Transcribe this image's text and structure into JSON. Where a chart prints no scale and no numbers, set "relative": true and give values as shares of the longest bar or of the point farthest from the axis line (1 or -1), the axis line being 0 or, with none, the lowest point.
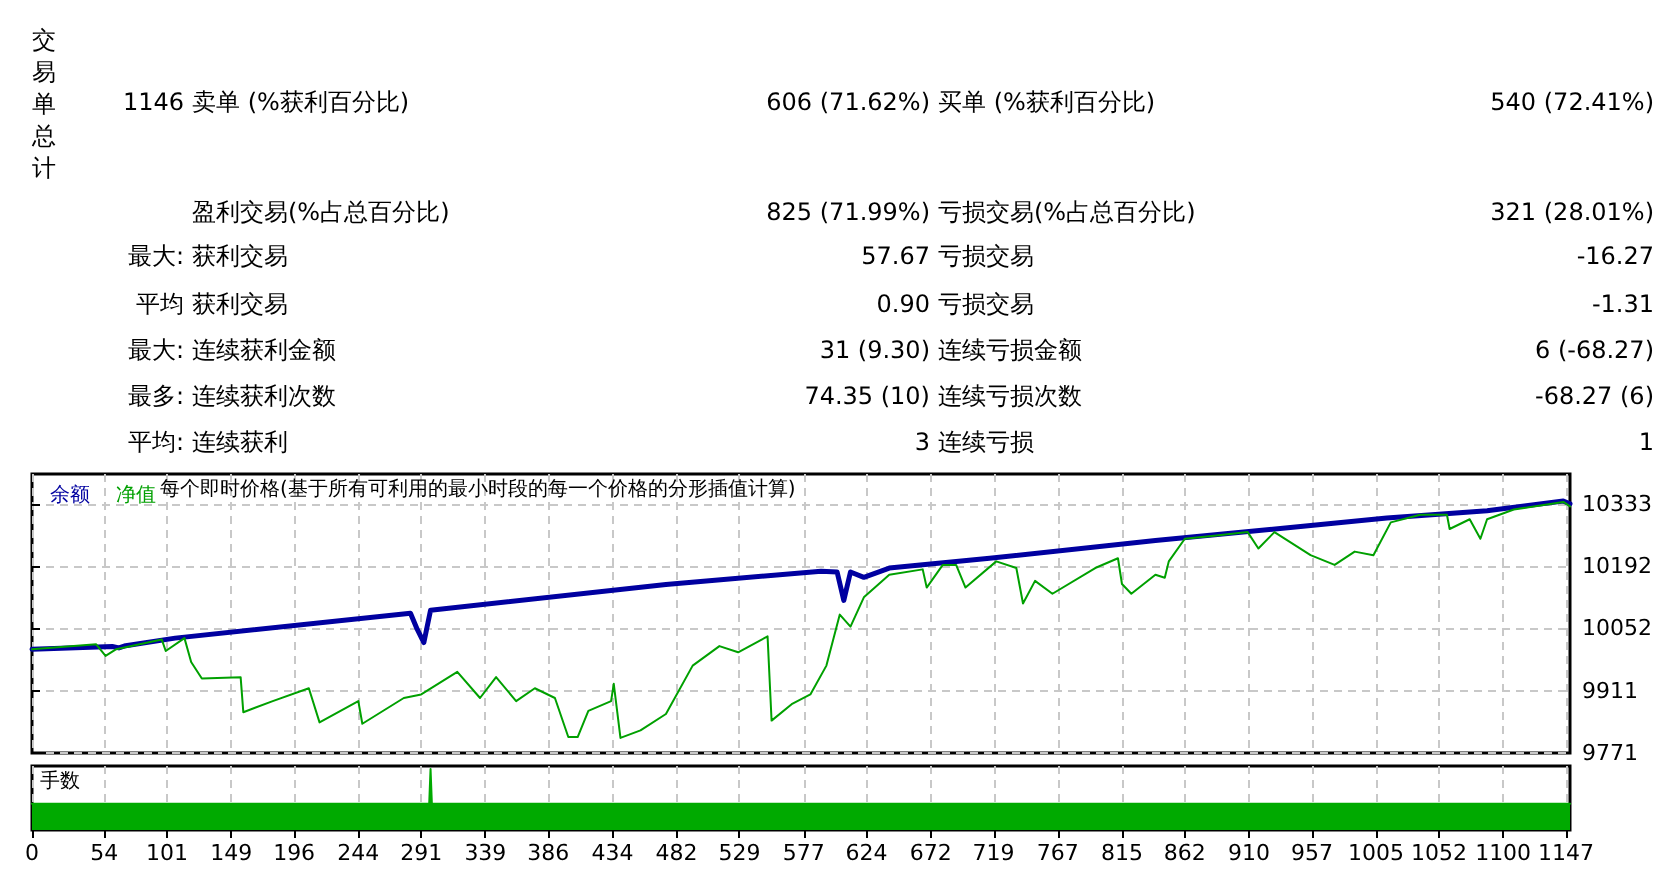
{
  "chart_data": [
    {
      "type": "other",
      "annotations": [
        "交易单总计",
        "1146",
        "卖单 (%获利百分比)",
        "606 (71.62%)",
        "买单 (%获利百分比)",
        "540 (72.41%)",
        "盈利交易(%占总百分比)",
        "825 (71.99%)",
        "亏损交易(%占总百分比)",
        "321 (28.01%)",
        "最大:",
        "获利交易",
        "57.67",
        "亏损交易",
        "-16.27",
        "平均",
        "获利交易",
        "0.90",
        "亏损交易",
        "-1.31",
        "最大:",
        "连续获利金额",
        "31 (9.30)",
        "连续亏损金额",
        "6 (-68.27)",
        "最多:",
        "连续获利次数",
        "74.35 (10)",
        "连续亏损次数",
        "-68.27 (6)",
        "平均:",
        "连续获利",
        "3",
        "连续亏损",
        "1"
      ]
    },
    {
      "type": "line",
      "title": "每个即时价格(基于所有可利用的最小时段的每一个价格的分形插值计算)",
      "legend": "top left",
      "grid": true,
      "tick_labels": "y",
      "xlim": [
        0,
        1150
      ],
      "xticks": [
        0,
        54,
        101,
        149,
        196,
        244,
        291,
        339,
        386,
        434,
        482,
        529,
        577,
        624,
        672,
        719,
        767,
        815,
        862,
        910,
        957,
        1005,
        1052,
        1100,
        1147
      ],
      "ylim": [
        9771,
        10400
      ],
      "yticks": [
        9771,
        9911,
        10052,
        10192,
        10333
      ],
      "series": [
        {
          "name": "余额",
          "color": "#0000a0",
          "x": [
            0,
            60,
            65,
            70,
            107,
            283,
            288,
            293,
            298,
            474,
            590,
            602,
            607,
            612,
            622,
            641,
            716,
            840,
            939,
            1013,
            1088,
            1145,
            1150
          ],
          "values": [
            10005,
            10011,
            10008,
            10013,
            10030,
            10086,
            10050,
            10020,
            10093,
            10151,
            10181,
            10179,
            10115,
            10179,
            10167,
            10188,
            10210,
            10250,
            10279,
            10301,
            10317,
            10339,
            10333
          ]
        },
        {
          "name": "净值",
          "color": "#00a000",
          "x": [
            0,
            48,
            55,
            63,
            97,
            100,
            114,
            119,
            127,
            156,
            158,
            180,
            207,
            215,
            244,
            247,
            278,
            291,
            318,
            335,
            347,
            362,
            376,
            391,
            401,
            408,
            416,
            433,
            435,
            440,
            455,
            474,
            494,
            514,
            528,
            550,
            553,
            568,
            582,
            594,
            604,
            612,
            622,
            641,
            666,
            669,
            681,
            691,
            698,
            721,
            736,
            741,
            750,
            763,
            795,
            812,
            815,
            822,
            840,
            847,
            850,
            862,
            884,
            909,
            917,
            929,
            956,
            974,
            989,
            1003,
            1016,
            1038,
            1058,
            1060,
            1075,
            1083,
            1088,
            1108,
            1145,
            1150
          ],
          "values": [
            10005,
            10016,
            9990,
            10005,
            10027,
            10001,
            10030,
            9976,
            9939,
            9942,
            9863,
            9888,
            9917,
            9840,
            9888,
            9837,
            9895,
            9903,
            9954,
            9895,
            9942,
            9888,
            9917,
            9895,
            9807,
            9807,
            9866,
            9888,
            9927,
            9805,
            9822,
            9859,
            9968,
            10012,
            9998,
            10034,
            9844,
            9881,
            9903,
            9968,
            10083,
            10056,
            10122,
            10173,
            10185,
            10144,
            10195,
            10195,
            10144,
            10203,
            10188,
            10108,
            10159,
            10130,
            10188,
            10210,
            10152,
            10130,
            10173,
            10166,
            10203,
            10254,
            10261,
            10269,
            10232,
            10269,
            10217,
            10195,
            10225,
            10217,
            10291,
            10308,
            10308,
            10276,
            10298,
            10254,
            10298,
            10320,
            10337,
            10327
          ]
        }
      ]
    },
    {
      "type": "area",
      "title": "手数",
      "relative": true,
      "grid": "x",
      "tick_labels": "x",
      "xlim": [
        0,
        1150
      ],
      "xticks": [
        0,
        54,
        101,
        149,
        196,
        244,
        291,
        339,
        386,
        434,
        482,
        529,
        577,
        624,
        672,
        719,
        767,
        815,
        862,
        910,
        957,
        1005,
        1052,
        1100,
        1147
      ],
      "series": [
        {
          "color": "#00aa00",
          "x": [
            0,
            297,
            298,
            299,
            1150
          ],
          "values": [
            0.43,
            0.43,
            1,
            0.43,
            0.43
          ]
        }
      ]
    }
  ]
}
